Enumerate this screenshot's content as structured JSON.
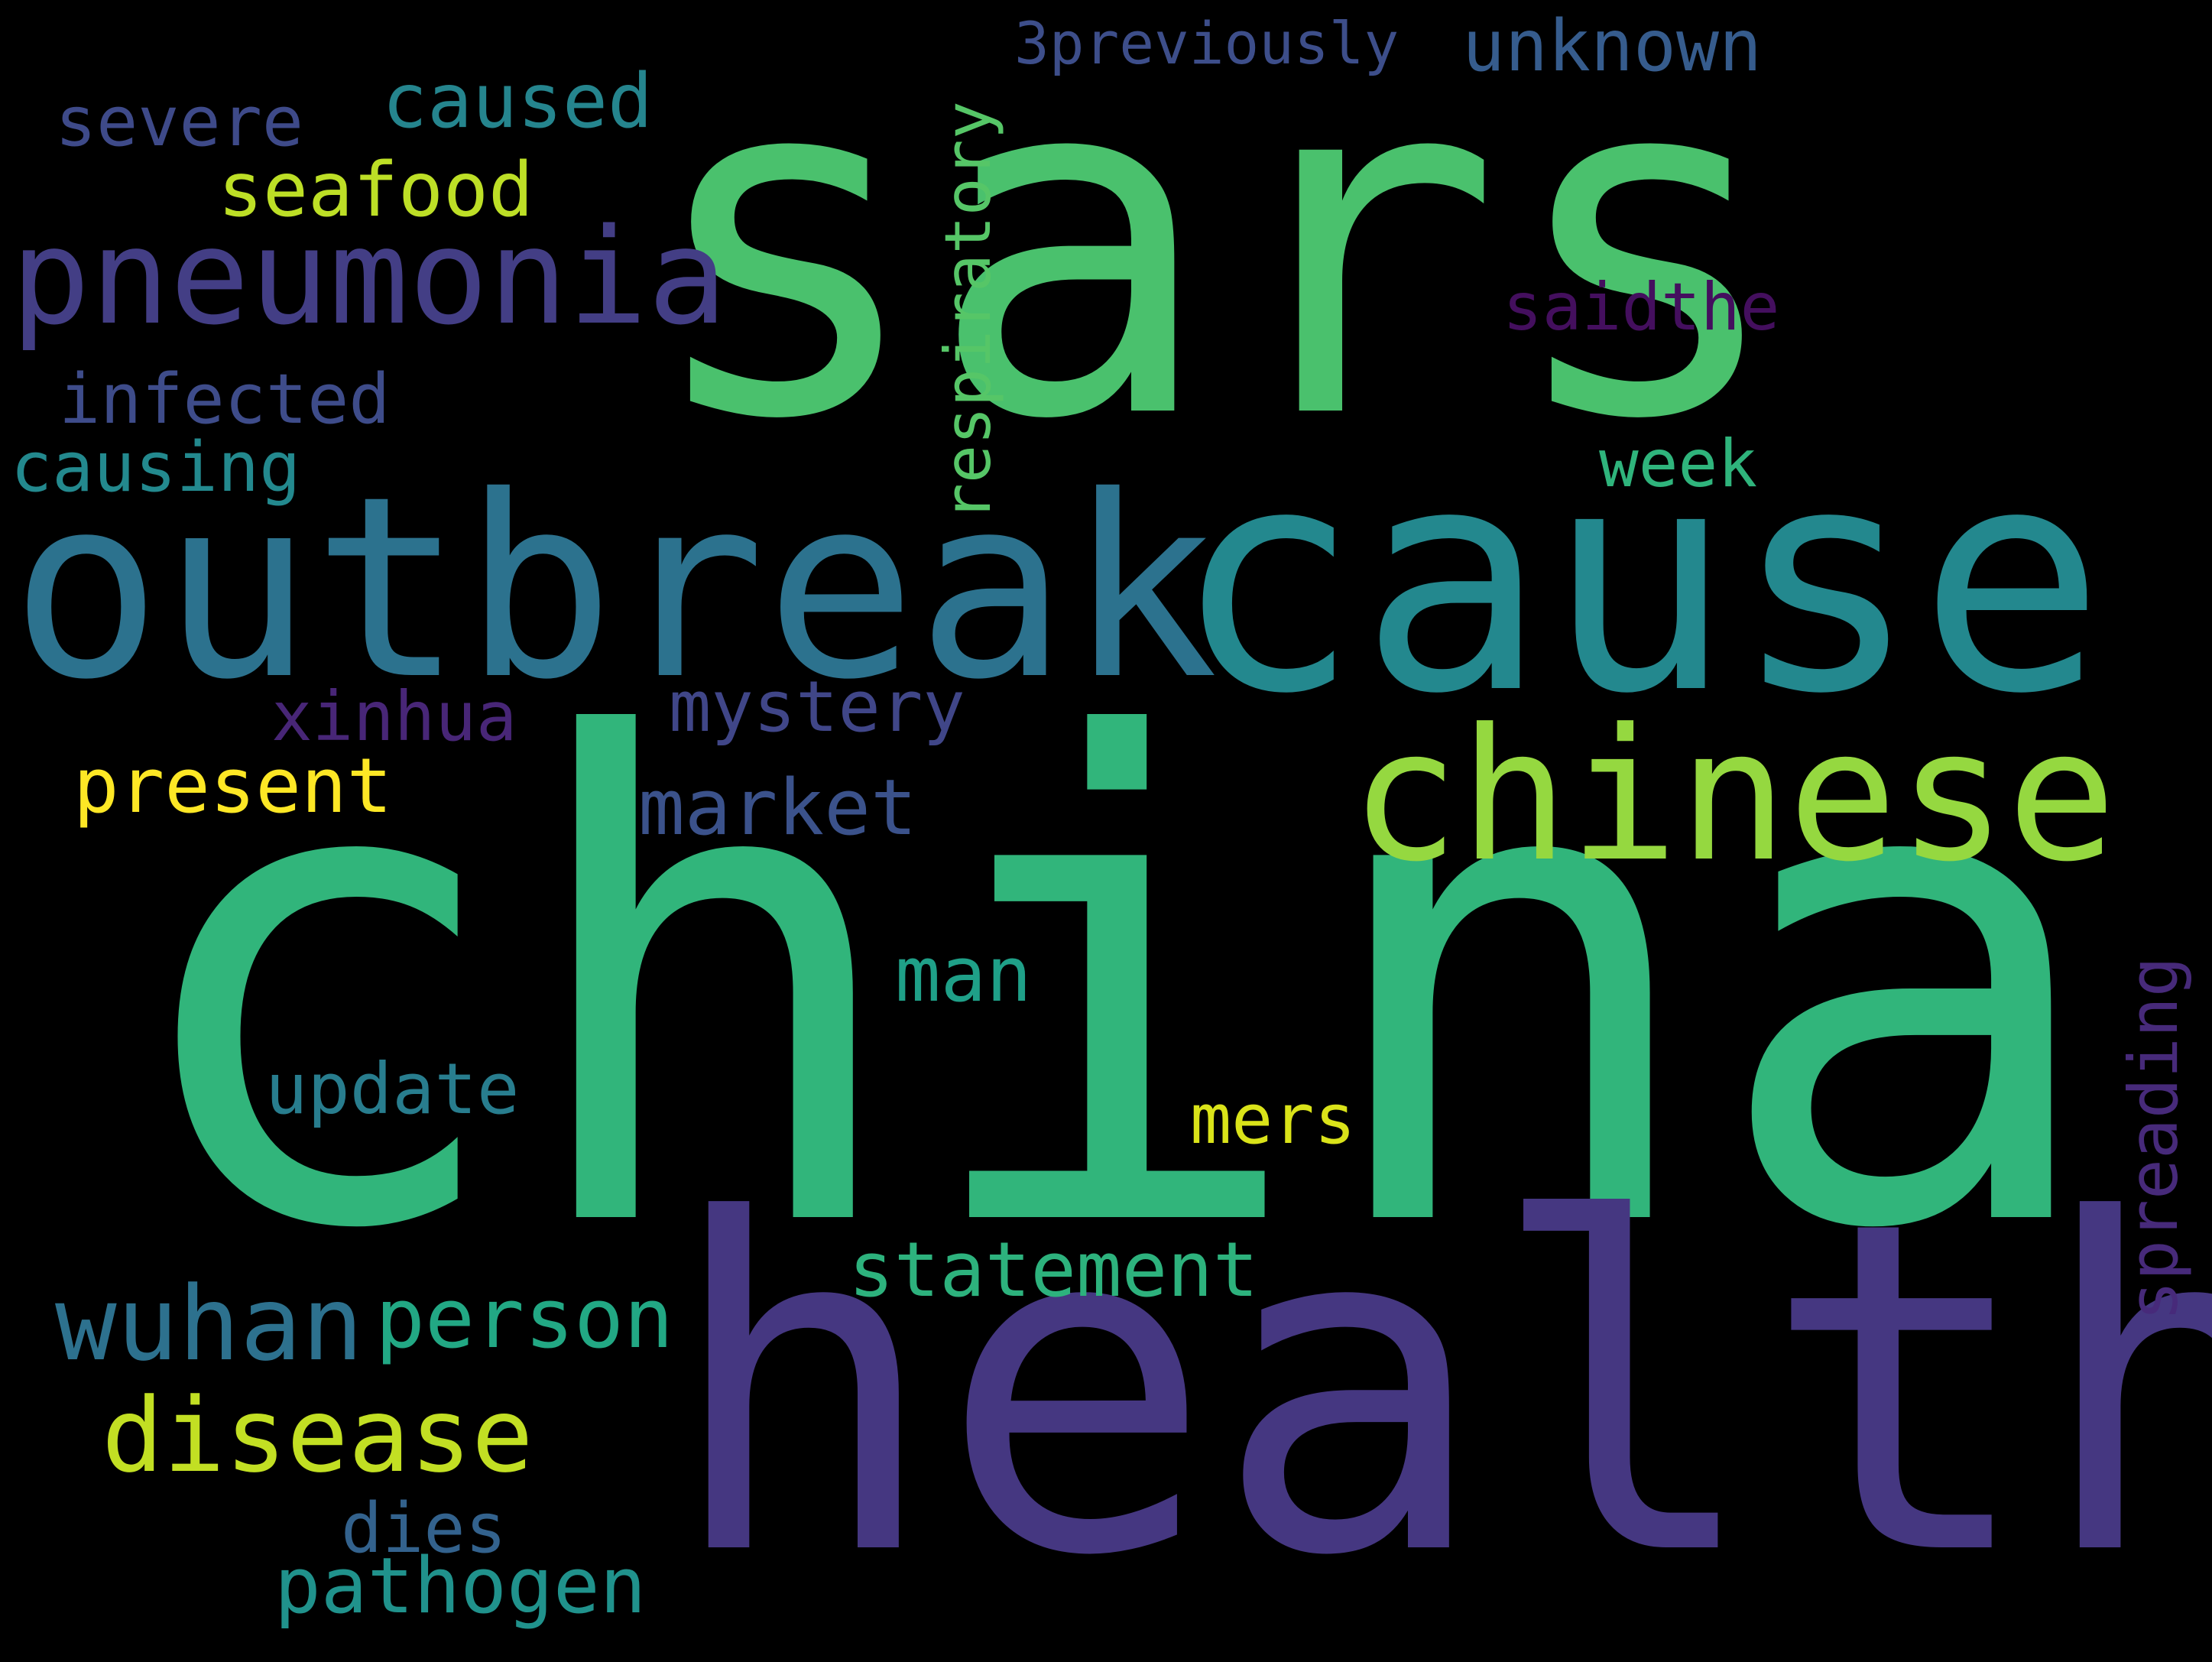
{
  "words": [
    {
      "text": "sars",
      "color": "#4ac16d"
    },
    {
      "text": "china",
      "color": "#31b57b"
    },
    {
      "text": "health",
      "color": "#453781"
    },
    {
      "text": "outbreak",
      "color": "#2c728e"
    },
    {
      "text": "cause",
      "color": "#23888e"
    },
    {
      "text": "chinese",
      "color": "#95d840"
    },
    {
      "text": "pneumonia",
      "color": "#433e85"
    },
    {
      "text": "disease",
      "color": "#c2df23"
    },
    {
      "text": "wuhan",
      "color": "#2d718e"
    },
    {
      "text": "person",
      "color": "#22a884"
    },
    {
      "text": "statement",
      "color": "#2db27d"
    },
    {
      "text": "pathogen",
      "color": "#20928c"
    },
    {
      "text": "update",
      "color": "#287d8e"
    },
    {
      "text": "market",
      "color": "#3b528b"
    },
    {
      "text": "mystery",
      "color": "#404688"
    },
    {
      "text": "present",
      "color": "#fde725"
    },
    {
      "text": "seafood",
      "color": "#bddf26"
    },
    {
      "text": "caused",
      "color": "#25858e"
    },
    {
      "text": "severe",
      "color": "#3e4a89"
    },
    {
      "text": "infected",
      "color": "#3e4c8a"
    },
    {
      "text": "causing",
      "color": "#23898e"
    },
    {
      "text": "xinhua",
      "color": "#482677"
    },
    {
      "text": "man",
      "color": "#1fa088"
    },
    {
      "text": "mers",
      "color": "#dae319"
    },
    {
      "text": "dies",
      "color": "#33628d"
    },
    {
      "text": "saidthe",
      "color": "#440f5e"
    },
    {
      "text": "week",
      "color": "#2fb47c"
    },
    {
      "text": "unknown",
      "color": "#365c8d"
    },
    {
      "text": "3previously",
      "color": "#3d4e8a"
    },
    {
      "text": "respiratory",
      "color": "#56c667"
    },
    {
      "text": "spreading",
      "color": "#472a7a"
    }
  ]
}
